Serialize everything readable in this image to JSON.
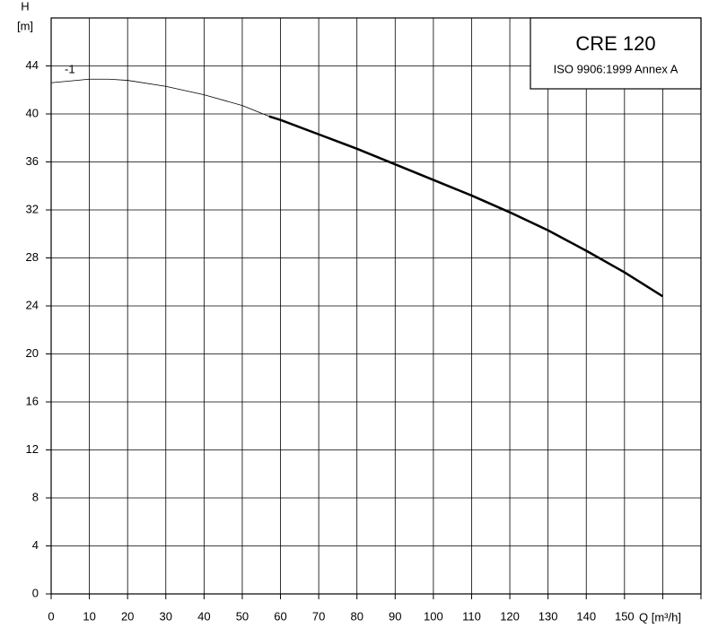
{
  "chart_data": {
    "type": "line",
    "title": "CRE 120",
    "subtitle": "ISO 9906:1999 Annex A",
    "y_label": "H",
    "y_unit": "[m]",
    "x_label": "Q [m³/h]",
    "series": [
      {
        "name": "-1",
        "color": "#000000",
        "width": 0.8,
        "x": [
          0,
          10,
          15,
          20,
          30,
          40,
          50,
          57
        ],
        "values": [
          42.6,
          42.9,
          42.9,
          42.8,
          42.3,
          41.6,
          40.7,
          39.8
        ]
      },
      {
        "color": "#000000",
        "width": 2.5,
        "x": [
          57,
          60,
          70,
          80,
          90,
          100,
          110,
          120,
          130,
          140,
          150,
          160
        ],
        "values": [
          39.8,
          39.5,
          38.3,
          37.1,
          35.8,
          34.5,
          33.2,
          31.8,
          30.3,
          28.6,
          26.8,
          24.8
        ]
      }
    ],
    "xlim": [
      0,
      170
    ],
    "ylim": [
      0,
      48
    ],
    "xticks": [
      0,
      10,
      20,
      30,
      40,
      50,
      60,
      70,
      80,
      90,
      100,
      110,
      120,
      130,
      140,
      150,
      160,
      170
    ],
    "xtick_labels_shown": [
      0,
      10,
      20,
      30,
      40,
      50,
      60,
      70,
      80,
      90,
      100,
      110,
      120,
      130,
      140,
      150
    ],
    "yticks": [
      0,
      4,
      8,
      12,
      16,
      20,
      24,
      28,
      32,
      36,
      40,
      44
    ],
    "grid": true
  }
}
